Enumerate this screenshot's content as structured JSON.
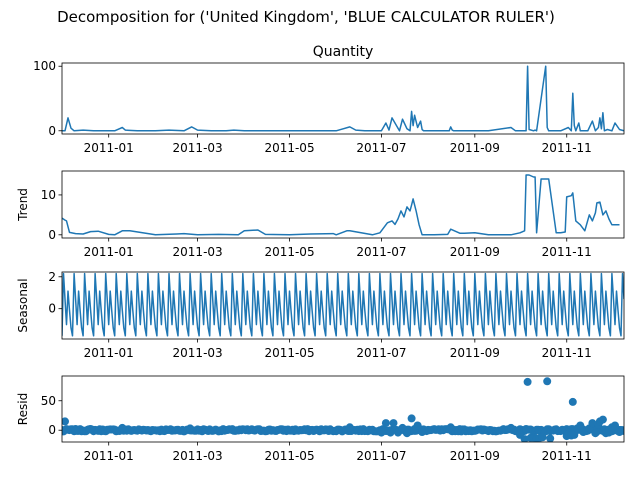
{
  "suptitle": "Decomposition for ('United Kingdom', 'BLUE CALCULATOR RULER')",
  "line_color": "#1f77b4",
  "x_tick_labels": [
    "2011-01",
    "2011-03",
    "2011-05",
    "2011-07",
    "2011-09",
    "2011-11"
  ],
  "chart_data": [
    {
      "type": "line",
      "title": "Quantity",
      "ylabel": "",
      "xlim": [
        "2010-12-01",
        "2011-12-09"
      ],
      "ylim": [
        -5,
        105
      ],
      "y_ticks": [
        0,
        100
      ],
      "x": [
        "2010-12-01",
        "2010-12-03",
        "2010-12-05",
        "2010-12-07",
        "2010-12-09",
        "2010-12-15",
        "2010-12-22",
        "2011-01-05",
        "2011-01-10",
        "2011-01-12",
        "2011-01-20",
        "2011-02-01",
        "2011-02-10",
        "2011-02-20",
        "2011-02-25",
        "2011-03-01",
        "2011-03-10",
        "2011-03-20",
        "2011-03-25",
        "2011-04-01",
        "2011-04-15",
        "2011-05-01",
        "2011-05-15",
        "2011-06-01",
        "2011-06-10",
        "2011-06-14",
        "2011-06-20",
        "2011-06-30",
        "2011-07-01",
        "2011-07-04",
        "2011-07-06",
        "2011-07-08",
        "2011-07-12",
        "2011-07-13",
        "2011-07-15",
        "2011-07-18",
        "2011-07-20",
        "2011-07-21",
        "2011-07-22",
        "2011-07-23",
        "2011-07-25",
        "2011-07-27",
        "2011-07-28",
        "2011-07-29",
        "2011-08-01",
        "2011-08-15",
        "2011-08-16",
        "2011-08-17",
        "2011-08-18",
        "2011-08-20",
        "2011-08-30",
        "2011-09-10",
        "2011-09-25",
        "2011-09-28",
        "2011-10-02",
        "2011-10-05",
        "2011-10-06",
        "2011-10-07",
        "2011-10-10",
        "2011-10-11",
        "2011-10-12",
        "2011-10-18",
        "2011-10-19",
        "2011-10-20",
        "2011-10-25",
        "2011-10-28",
        "2011-11-02",
        "2011-11-04",
        "2011-11-05",
        "2011-11-06",
        "2011-11-07",
        "2011-11-09",
        "2011-11-10",
        "2011-11-15",
        "2011-11-18",
        "2011-11-20",
        "2011-11-22",
        "2011-11-23",
        "2011-11-24",
        "2011-11-25",
        "2011-11-26",
        "2011-11-28",
        "2011-12-01",
        "2011-12-03",
        "2011-12-06",
        "2011-12-09"
      ],
      "values": [
        0,
        0,
        20,
        4,
        0,
        1,
        0,
        0,
        5,
        1,
        0,
        0,
        1,
        0,
        6,
        1,
        0,
        0,
        1,
        0,
        0,
        0,
        0,
        0,
        6,
        1,
        0,
        0,
        0,
        12,
        1,
        20,
        4,
        0,
        18,
        3,
        0,
        30,
        8,
        24,
        5,
        15,
        2,
        0,
        0,
        0,
        6,
        1,
        0,
        0,
        0,
        0,
        5,
        0,
        0,
        0,
        100,
        2,
        0,
        1,
        0,
        100,
        5,
        0,
        0,
        0,
        5,
        0,
        58,
        8,
        0,
        12,
        0,
        0,
        15,
        0,
        5,
        20,
        3,
        28,
        0,
        2,
        0,
        12,
        2,
        0
      ]
    },
    {
      "type": "line",
      "title": "",
      "ylabel": "Trend",
      "xlim": [
        "2010-12-01",
        "2011-12-09"
      ],
      "ylim": [
        -0.8,
        16
      ],
      "y_ticks": [
        0,
        10
      ],
      "x": [
        "2010-12-01",
        "2010-12-03",
        "2010-12-04",
        "2010-12-06",
        "2010-12-10",
        "2010-12-15",
        "2010-12-20",
        "2010-12-25",
        "2011-01-01",
        "2011-01-05",
        "2011-01-10",
        "2011-01-15",
        "2011-02-01",
        "2011-02-08",
        "2011-02-15",
        "2011-02-20",
        "2011-03-01",
        "2011-03-15",
        "2011-03-28",
        "2011-04-01",
        "2011-04-10",
        "2011-04-15",
        "2011-05-01",
        "2011-05-15",
        "2011-05-30",
        "2011-06-01",
        "2011-06-08",
        "2011-06-10",
        "2011-06-25",
        "2011-06-30",
        "2011-07-02",
        "2011-07-05",
        "2011-07-08",
        "2011-07-10",
        "2011-07-12",
        "2011-07-14",
        "2011-07-16",
        "2011-07-18",
        "2011-07-20",
        "2011-07-21",
        "2011-07-22",
        "2011-07-24",
        "2011-07-26",
        "2011-07-28",
        "2011-07-31",
        "2011-08-05",
        "2011-08-14",
        "2011-08-16",
        "2011-08-22",
        "2011-08-25",
        "2011-09-01",
        "2011-09-10",
        "2011-09-20",
        "2011-09-25",
        "2011-10-01",
        "2011-10-04",
        "2011-10-05",
        "2011-10-07",
        "2011-10-10",
        "2011-10-11",
        "2011-10-12",
        "2011-10-15",
        "2011-10-16",
        "2011-10-20",
        "2011-10-25",
        "2011-10-28",
        "2011-10-31",
        "2011-11-01",
        "2011-11-04",
        "2011-11-05",
        "2011-11-07",
        "2011-11-10",
        "2011-11-13",
        "2011-11-16",
        "2011-11-18",
        "2011-11-20",
        "2011-11-21",
        "2011-11-23",
        "2011-11-25",
        "2011-11-27",
        "2011-11-29",
        "2011-12-01",
        "2011-12-03",
        "2011-12-06"
      ],
      "values": [
        4.2,
        3.7,
        3.5,
        0.6,
        0.3,
        0.2,
        0.8,
        0.9,
        0.1,
        0.0,
        1.0,
        1.0,
        0.0,
        0.1,
        0.2,
        0.3,
        0.0,
        0.1,
        0.0,
        1.0,
        1.2,
        0.1,
        0.0,
        0.2,
        0.3,
        0.0,
        1.0,
        1.0,
        0.0,
        0.5,
        1.5,
        3.0,
        3.5,
        2.6,
        4.0,
        6.0,
        4.5,
        7.0,
        6.0,
        7.5,
        9.0,
        6.0,
        2.5,
        0.0,
        0.0,
        0.0,
        0.1,
        1.4,
        0.4,
        0.4,
        0.5,
        0.0,
        0.0,
        0.0,
        0.5,
        1.0,
        15.0,
        15.0,
        14.5,
        14.5,
        0.5,
        14.0,
        14.0,
        14.0,
        0.5,
        0.5,
        0.7,
        9.5,
        9.8,
        10.5,
        3.5,
        2.5,
        1.0,
        5.0,
        3.5,
        5.5,
        8.0,
        8.2,
        5.0,
        6.0,
        4.0,
        2.5,
        2.5,
        2.5
      ]
    },
    {
      "type": "line",
      "title": "",
      "ylabel": "Seasonal",
      "xlim": [
        "2010-12-01",
        "2011-12-09"
      ],
      "ylim": [
        -1.9,
        2.3
      ],
      "y_ticks": [
        0,
        2
      ],
      "period_days": 7,
      "pattern": [
        -1.7,
        2.2,
        0.6,
        -1.0,
        1.1,
        -0.1,
        -1.2
      ]
    },
    {
      "type": "scatter",
      "title": "",
      "ylabel": "Resid",
      "xlim": [
        "2010-12-01",
        "2011-12-09"
      ],
      "ylim": [
        -20,
        92
      ],
      "y_ticks": [
        0,
        50
      ],
      "points": [
        {
          "x": "2010-12-02",
          "y": -2
        },
        {
          "x": "2010-12-03",
          "y": 15
        },
        {
          "x": "2010-12-06",
          "y": 1
        },
        {
          "x": "2010-12-10",
          "y": -1
        },
        {
          "x": "2010-12-20",
          "y": 2
        },
        {
          "x": "2011-01-10",
          "y": 4
        },
        {
          "x": "2011-02-24",
          "y": 3
        },
        {
          "x": "2011-06-10",
          "y": 5
        },
        {
          "x": "2011-07-01",
          "y": -4
        },
        {
          "x": "2011-07-04",
          "y": 12
        },
        {
          "x": "2011-07-07",
          "y": -4
        },
        {
          "x": "2011-07-09",
          "y": 12
        },
        {
          "x": "2011-07-12",
          "y": -4
        },
        {
          "x": "2011-07-15",
          "y": 4
        },
        {
          "x": "2011-07-18",
          "y": -5
        },
        {
          "x": "2011-07-21",
          "y": 20
        },
        {
          "x": "2011-07-23",
          "y": 2
        },
        {
          "x": "2011-07-25",
          "y": 8
        },
        {
          "x": "2011-07-28",
          "y": -3
        },
        {
          "x": "2011-08-16",
          "y": 5
        },
        {
          "x": "2011-09-25",
          "y": 4
        },
        {
          "x": "2011-10-01",
          "y": -8
        },
        {
          "x": "2011-10-04",
          "y": -15
        },
        {
          "x": "2011-10-05",
          "y": 2
        },
        {
          "x": "2011-10-06",
          "y": 82
        },
        {
          "x": "2011-10-08",
          "y": -13
        },
        {
          "x": "2011-10-10",
          "y": -13
        },
        {
          "x": "2011-10-12",
          "y": -14
        },
        {
          "x": "2011-10-14",
          "y": -13
        },
        {
          "x": "2011-10-16",
          "y": -12
        },
        {
          "x": "2011-10-19",
          "y": 83
        },
        {
          "x": "2011-10-21",
          "y": -14
        },
        {
          "x": "2011-11-01",
          "y": -10
        },
        {
          "x": "2011-11-02",
          "y": -6
        },
        {
          "x": "2011-11-04",
          "y": -9
        },
        {
          "x": "2011-11-05",
          "y": 48
        },
        {
          "x": "2011-11-06",
          "y": -8
        },
        {
          "x": "2011-11-08",
          "y": 3
        },
        {
          "x": "2011-11-10",
          "y": 8
        },
        {
          "x": "2011-11-12",
          "y": -3
        },
        {
          "x": "2011-11-16",
          "y": 3
        },
        {
          "x": "2011-11-18",
          "y": 12
        },
        {
          "x": "2011-11-20",
          "y": -5
        },
        {
          "x": "2011-11-22",
          "y": 10
        },
        {
          "x": "2011-11-23",
          "y": 15
        },
        {
          "x": "2011-11-25",
          "y": 18
        },
        {
          "x": "2011-11-27",
          "y": -5
        },
        {
          "x": "2011-11-29",
          "y": -4
        },
        {
          "x": "2011-12-01",
          "y": 5
        },
        {
          "x": "2011-12-03",
          "y": 8
        },
        {
          "x": "2011-12-06",
          "y": -3
        }
      ],
      "baseline_noise": true
    }
  ]
}
